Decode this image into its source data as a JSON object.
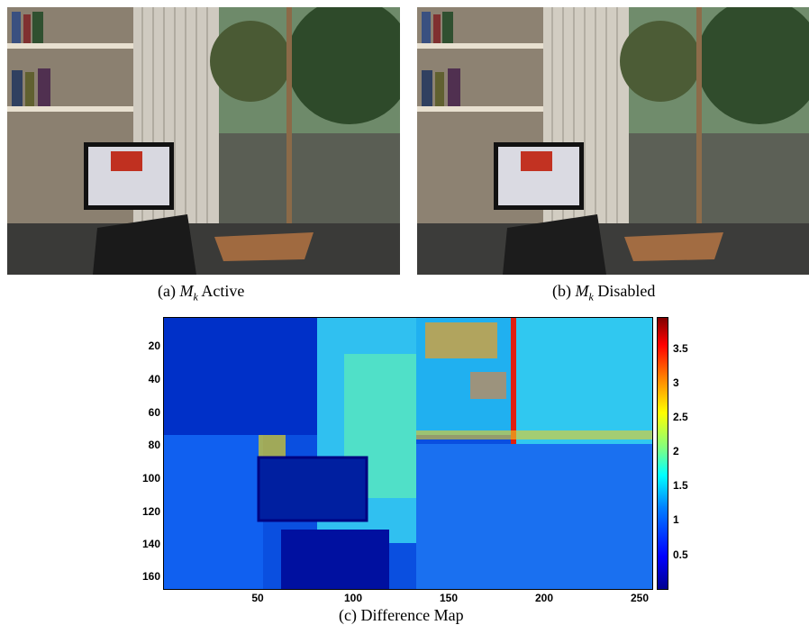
{
  "figure": {
    "panels": [
      {
        "id": "a",
        "caption_prefix": "(a)",
        "symbol": "M",
        "subscript": "k",
        "caption_suffix": "Active"
      },
      {
        "id": "b",
        "caption_prefix": "(b)",
        "symbol": "M",
        "subscript": "k",
        "caption_suffix": "Disabled"
      }
    ],
    "heatmap_caption": "(c) Difference Map"
  },
  "chart_data": {
    "type": "heatmap",
    "title": "",
    "xlabel": "",
    "ylabel": "",
    "x_ticks": [
      "50",
      "100",
      "150",
      "200",
      "250"
    ],
    "y_ticks": [
      "20",
      "40",
      "60",
      "80",
      "100",
      "120",
      "140",
      "160"
    ],
    "xlim": [
      1,
      256
    ],
    "ylim": [
      1,
      170
    ],
    "colorbar": {
      "ticks": [
        "0.5",
        "1",
        "1.5",
        "2",
        "2.5",
        "3",
        "3.5"
      ],
      "range": [
        0,
        3.9
      ],
      "colormap": "jet"
    },
    "colors": {
      "low": "#00008f",
      "mid": "#00ffff",
      "high": "#800000"
    }
  }
}
